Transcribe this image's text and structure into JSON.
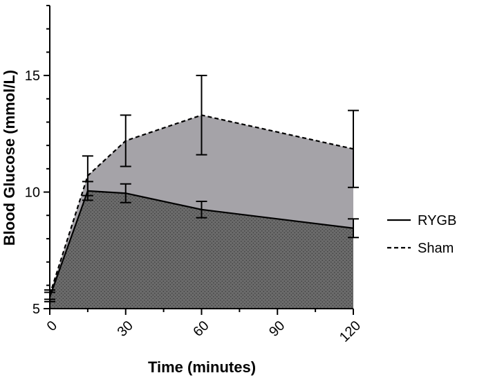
{
  "chart_data": {
    "type": "area",
    "xlabel": "Time  (minutes)",
    "ylabel": "Blood  Glucose  (mmol/L)",
    "xlim": [
      0,
      120
    ],
    "ylim": [
      5,
      18
    ],
    "x_ticks": [
      0,
      30,
      60,
      90,
      120
    ],
    "y_ticks": [
      5,
      10,
      15
    ],
    "x_tick_labels": [
      "0",
      "30",
      "60",
      "90",
      "120"
    ],
    "y_tick_labels": [
      "5",
      "10",
      "15"
    ],
    "grid": false,
    "legend_position": "right",
    "series": [
      {
        "name": "Sham",
        "line_style": "dashed",
        "fill_color": "#a5a3a8",
        "x": [
          0,
          15,
          30,
          60,
          120
        ],
        "y": [
          5.6,
          10.7,
          12.2,
          13.3,
          11.85
        ],
        "err": [
          0.2,
          0.85,
          1.1,
          1.7,
          1.65
        ]
      },
      {
        "name": "RYGB",
        "line_style": "solid",
        "fill_color": "#6b6b6b",
        "x": [
          0,
          15,
          30,
          60,
          120
        ],
        "y": [
          5.5,
          10.05,
          9.95,
          9.25,
          8.45
        ],
        "err": [
          0.2,
          0.4,
          0.4,
          0.35,
          0.4
        ]
      }
    ]
  }
}
